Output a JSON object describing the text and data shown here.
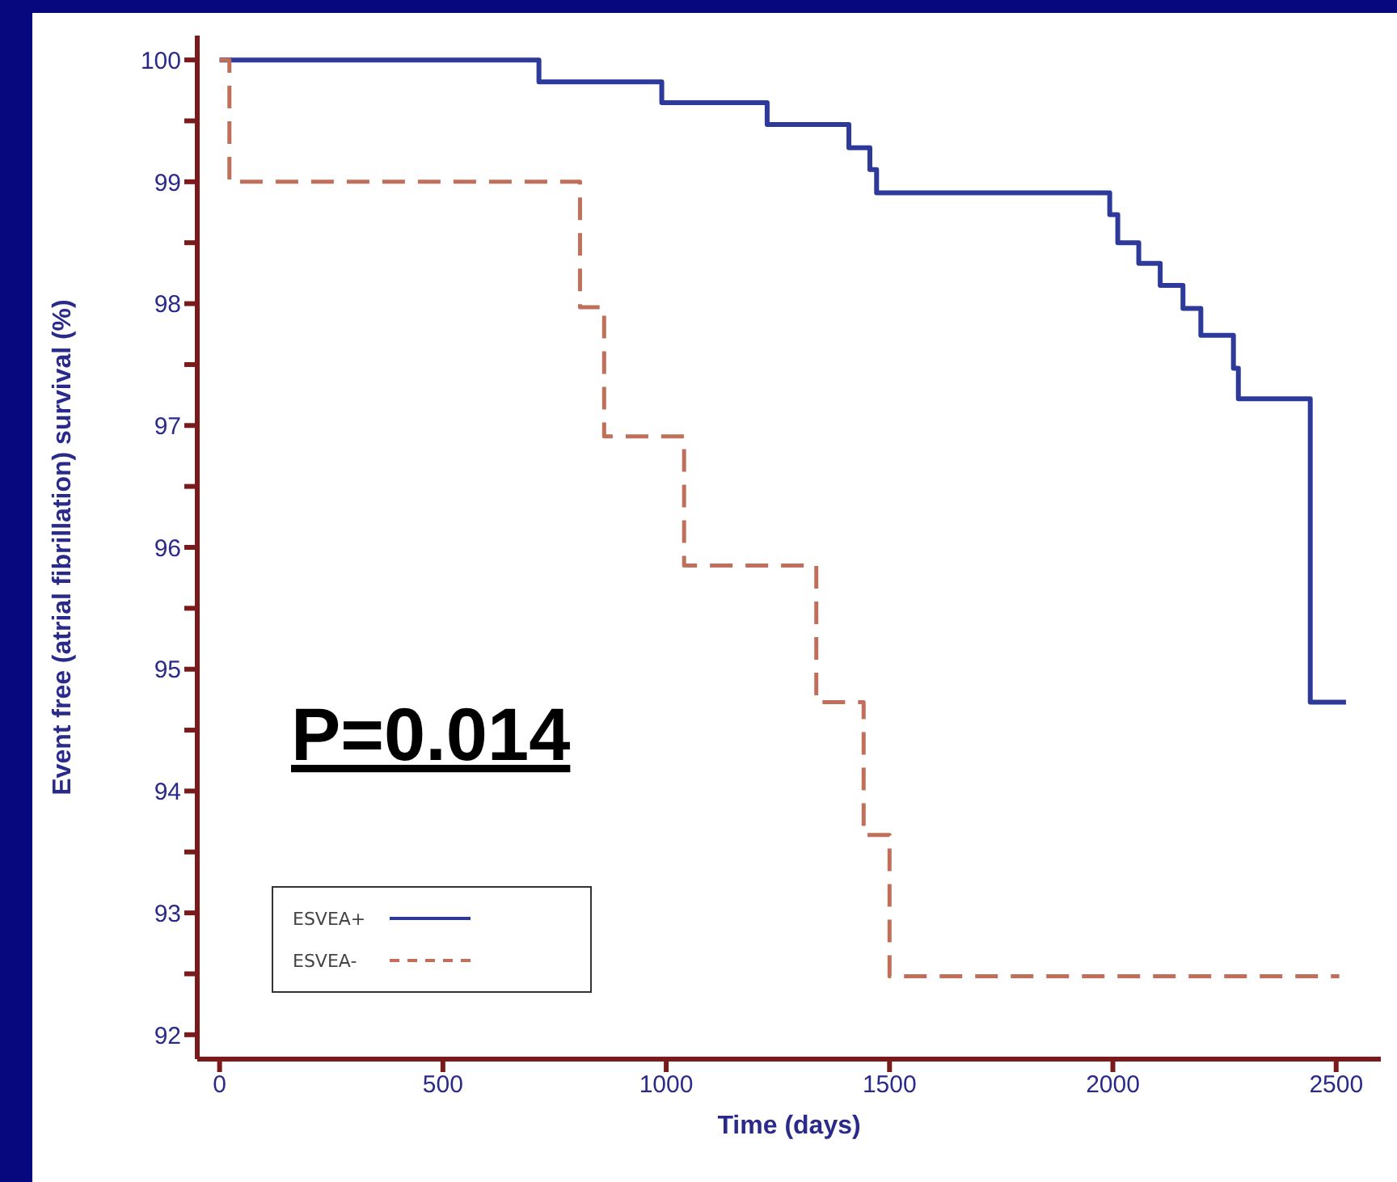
{
  "chart_data": {
    "type": "step",
    "xlabel": "Time (days)",
    "ylabel": "Event free (atrial fibrillation) survival (%)",
    "xlim": [
      -50,
      2600
    ],
    "xticks": [
      0,
      500,
      1000,
      1500,
      2000,
      2500
    ],
    "ylim": [
      91.8,
      100.2
    ],
    "yticks": [
      92,
      {
        "value": 92.5,
        "label": null
      },
      93,
      {
        "value": 93.5,
        "label": null
      },
      94,
      {
        "value": 94.5,
        "label": null
      },
      95,
      {
        "value": 95.5,
        "label": null
      },
      96,
      {
        "value": 96.5,
        "label": null
      },
      97,
      {
        "value": 97.5,
        "label": null
      },
      98,
      {
        "value": 98.5,
        "label": null
      },
      99,
      {
        "value": 99.5,
        "label": null
      },
      100
    ],
    "grid": false,
    "legend": "bottom left",
    "marker": "none",
    "annotations": [
      "P=0.014"
    ],
    "series": [
      {
        "name": "ESVEA+",
        "color": "#2e3a9a",
        "line_style": "solid",
        "x": [
          0,
          715,
          990,
          1226,
          1409,
          1456,
          1471,
          1993,
          2011,
          2058,
          2106,
          2157,
          2197,
          2270,
          2281,
          2442,
          2522
        ],
        "values": [
          100,
          99.82,
          99.65,
          99.47,
          99.28,
          99.1,
          98.91,
          98.73,
          98.5,
          98.33,
          98.15,
          97.96,
          97.74,
          97.47,
          97.22,
          94.73,
          94.73
        ]
      },
      {
        "name": "ESVEA-",
        "color": "#c0705a",
        "line_style": "dashed",
        "x": [
          0,
          22,
          807,
          861,
          1040,
          1336,
          1442,
          1500,
          2507
        ],
        "values": [
          100,
          99,
          97.97,
          96.91,
          95.85,
          94.73,
          93.64,
          92.48,
          92.48
        ]
      }
    ]
  }
}
